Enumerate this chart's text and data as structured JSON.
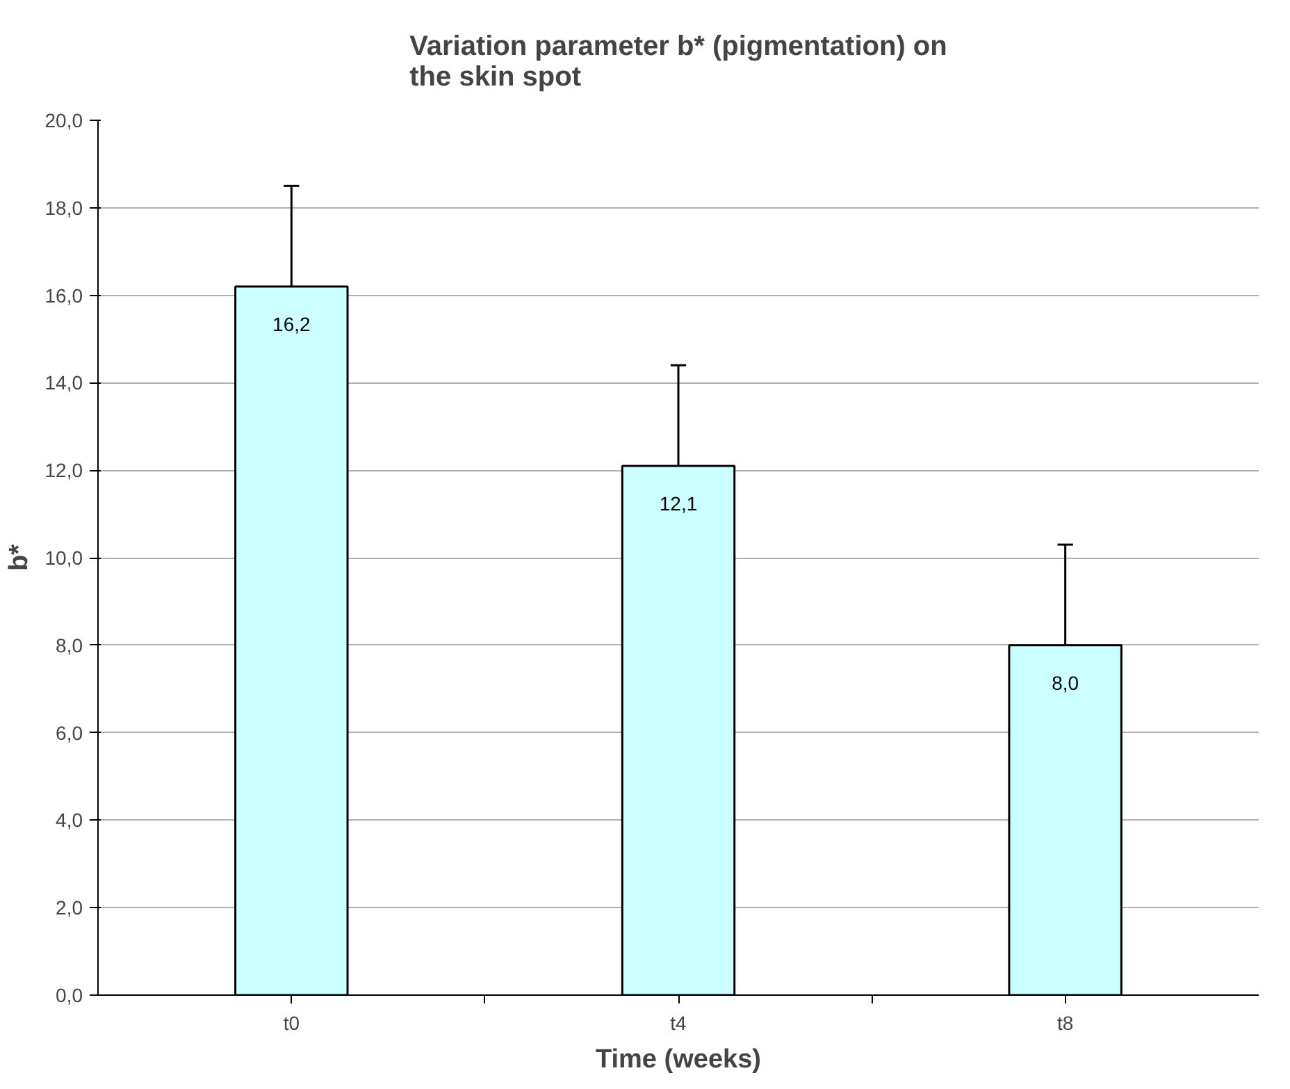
{
  "chart_data": {
    "type": "bar",
    "title": "Variation parameter b* (pigmentation) on the skin spot",
    "xlabel": "Time (weeks)",
    "ylabel": "b*",
    "categories": [
      "t0",
      "t4",
      "t8"
    ],
    "values": [
      16.2,
      12.1,
      8.0
    ],
    "color": "#ccffff",
    "errors": [
      [
        16.2,
        18.5
      ],
      [
        12.1,
        14.4
      ],
      [
        8.0,
        10.3
      ]
    ],
    "value_labels": [
      "16,2",
      "12,1",
      "8,0"
    ],
    "ylim": [
      0,
      20
    ],
    "yticks": [
      {
        "value": 0,
        "label": "0,0"
      },
      {
        "value": 2,
        "label": "2,0"
      },
      {
        "value": 4,
        "label": "4,0"
      },
      {
        "value": 6,
        "label": "6,0"
      },
      {
        "value": 8,
        "label": "8,0"
      },
      {
        "value": 10,
        "label": "10,0"
      },
      {
        "value": 12,
        "label": "12,0"
      },
      {
        "value": 14,
        "label": "14,0"
      },
      {
        "value": 16,
        "label": "16,0"
      },
      {
        "value": 18,
        "label": "18,0"
      },
      {
        "value": 20,
        "label": "20,0"
      }
    ],
    "grid": "y"
  }
}
